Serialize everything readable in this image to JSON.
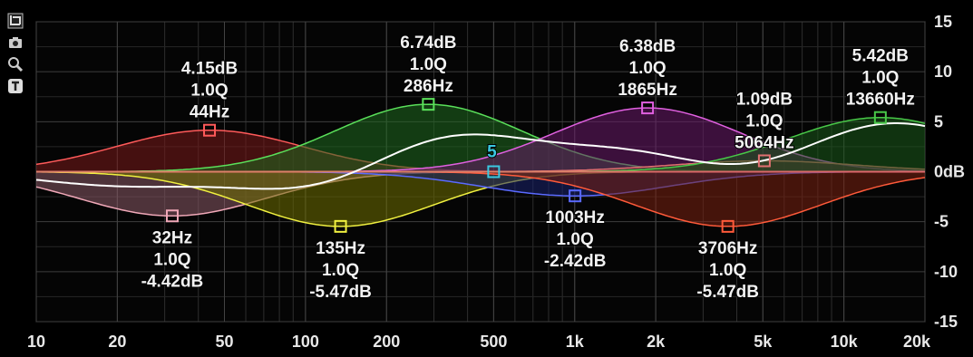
{
  "toolbar": {
    "icons": [
      "crop-icon",
      "camera-icon",
      "zoom-icon",
      "text-icon"
    ]
  },
  "chart_data": {
    "type": "line",
    "title": "",
    "xlabel": "",
    "ylabel": "",
    "x_scale": "log",
    "xlim": [
      10,
      20000
    ],
    "ylim": [
      -15,
      15
    ],
    "grid": true,
    "x_ticks": [
      "10",
      "20",
      "50",
      "100",
      "200",
      "500",
      "1k",
      "2k",
      "5k",
      "10k",
      "20k"
    ],
    "x_tick_values": [
      10,
      20,
      50,
      100,
      200,
      500,
      1000,
      2000,
      5000,
      10000,
      20000
    ],
    "y_ticks": [
      "15",
      "10",
      "5",
      "0dB",
      "-5",
      "-10",
      "-15"
    ],
    "y_tick_values": [
      15,
      10,
      5,
      0,
      -5,
      -10,
      -15
    ],
    "bands": [
      {
        "freq": 32,
        "gain": -4.42,
        "q": 1.0,
        "color": "#f0a8b8",
        "fill": "#8a5a66",
        "label": [
          "32Hz",
          "1.0Q",
          "-4.42dB"
        ]
      },
      {
        "freq": 44,
        "gain": 4.15,
        "q": 1.0,
        "color": "#ff5a5a",
        "fill": "#7a1a1a",
        "label": [
          "4.15dB",
          "1.0Q",
          "44Hz"
        ]
      },
      {
        "freq": 135,
        "gain": -5.47,
        "q": 1.0,
        "color": "#f0f040",
        "fill": "#707000",
        "label": [
          "135Hz",
          "1.0Q",
          "-5.47dB"
        ]
      },
      {
        "freq": 286,
        "gain": 6.74,
        "q": 1.0,
        "color": "#5ae05a",
        "fill": "#1f6a1f",
        "label": [
          "6.74dB",
          "1.0Q",
          "286Hz"
        ]
      },
      {
        "freq": 500,
        "gain": 0.0,
        "q": 1.0,
        "color": "#3ac8e0",
        "fill": "#1a5a66",
        "label": [
          "5"
        ]
      },
      {
        "freq": 1003,
        "gain": -2.42,
        "q": 1.0,
        "color": "#5a6aff",
        "fill": "#1a226e",
        "label": [
          "1003Hz",
          "1.0Q",
          "-2.42dB"
        ]
      },
      {
        "freq": 1865,
        "gain": 6.38,
        "q": 1.0,
        "color": "#e060e0",
        "fill": "#6a1a6a",
        "label": [
          "6.38dB",
          "1.0Q",
          "1865Hz"
        ]
      },
      {
        "freq": 3706,
        "gain": -5.47,
        "q": 1.0,
        "color": "#ff5a3a",
        "fill": "#7a2010",
        "label": [
          "3706Hz",
          "1.0Q",
          "-5.47dB"
        ]
      },
      {
        "freq": 5064,
        "gain": 1.09,
        "q": 1.0,
        "color": "#e07070",
        "fill": "#5a2a2a",
        "label": [
          "1.09dB",
          "1.0Q",
          "5064Hz"
        ]
      },
      {
        "freq": 13660,
        "gain": 5.42,
        "q": 1.0,
        "color": "#48c848",
        "fill": "#1a5a1a",
        "label": [
          "5.42dB",
          "1.0Q",
          "13660Hz"
        ]
      }
    ],
    "series": [
      {
        "name": "",
        "color": "#ffffff",
        "type": "sum"
      }
    ]
  }
}
